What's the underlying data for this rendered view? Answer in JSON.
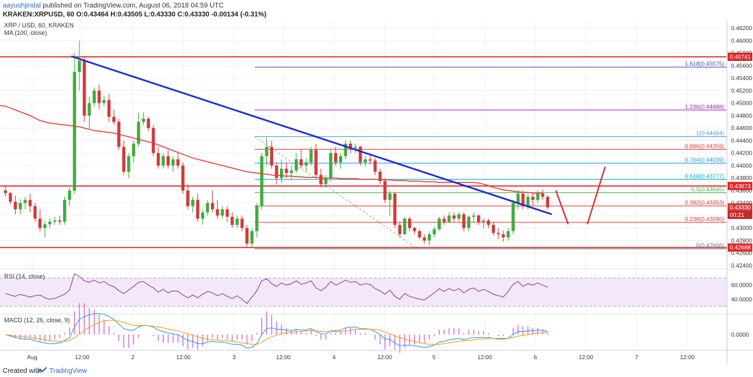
{
  "header": {
    "author": "aayushjindal",
    "published_text": "published on TradingView.com, August 06, 2018 04:59 UTC",
    "ohlc_line": "KRAKEN:XRPUSD, 60  O:0.43464  H:0.43505  L:0.43330  C:0.43330  -0.00134 (-0.31%)"
  },
  "legend": {
    "symbol": "XRP / USD, 60, KRAKEN",
    "ma": "MA (100, close)",
    "rsi": "RSI (14, close)",
    "macd": "MACD (12, 26, close, 9)"
  },
  "footer": {
    "created_with": "Created with",
    "brand": "TradingView"
  },
  "colors": {
    "up": "#3cae3c",
    "down": "#d23a3a",
    "ma": "#e53935",
    "trendline": "#1f2ccf",
    "level": "#e0262a",
    "rsi": "#8a3aa0",
    "macd": "#2196f3",
    "signal": "#ff9800",
    "hist_pos": "#d35bcf",
    "hist_neg": "#d35bcf"
  },
  "chart_data": {
    "type": "candlestick",
    "symbol": "XRP / USD",
    "timeframe": "60",
    "exchange": "KRAKEN",
    "price_axis": {
      "range": [
        0.424,
        0.463
      ],
      "ticks": [
        "0.46200",
        "0.46000",
        "0.45800",
        "0.45600",
        "0.45400",
        "0.45200",
        "0.45000",
        "0.44800",
        "0.44600",
        "0.44400",
        "0.44200",
        "0.44000",
        "0.43800",
        "0.43600",
        "0.43400",
        "0.43200",
        "0.43000",
        "0.42800",
        "0.42600",
        "0.42400"
      ]
    },
    "time_axis": {
      "labels": [
        "Aug",
        "12:00",
        "2",
        "12:00",
        "3",
        "12:00",
        "4",
        "12:00",
        "5",
        "12:00",
        "6",
        "12:00",
        "7",
        "12:00"
      ]
    },
    "price_labels": [
      {
        "value": "0.45741",
        "kind": "level"
      },
      {
        "value": "0.43673",
        "kind": "level"
      },
      {
        "value": "0.43330",
        "kind": "last"
      },
      {
        "value": "00:21",
        "kind": "countdown"
      },
      {
        "value": "0.42688",
        "kind": "level"
      }
    ],
    "fib_levels": [
      {
        "label": "1.618(0.45575)",
        "value": 0.45575,
        "color": "#3f51b5"
      },
      {
        "label": "1.236(0.44888)",
        "value": 0.44888,
        "color": "#9c27b0"
      },
      {
        "label": "1(0.44464)",
        "value": 0.44464,
        "color": "#4aa3d8"
      },
      {
        "label": "0.886(0.44259)",
        "value": 0.44259,
        "color": "#e53935"
      },
      {
        "label": "0.764(0.44039)",
        "value": 0.44039,
        "color": "#2196f3"
      },
      {
        "label": "0.618(0.43777)",
        "value": 0.43777,
        "color": "#00acc1"
      },
      {
        "label": "0.5(0.43565)",
        "value": 0.43565,
        "color": "#4caf50"
      },
      {
        "label": "0.382(0.43353)",
        "value": 0.43353,
        "color": "#e53935"
      },
      {
        "label": "0.236(0.43090)",
        "value": 0.4309,
        "color": "#e53935"
      },
      {
        "label": "0(0.42666)",
        "value": 0.42666,
        "color": "#607d8b"
      }
    ],
    "horizontal_levels": [
      0.45741,
      0.43673,
      0.42688
    ],
    "candles": [
      [
        0.436,
        0.4367,
        0.435,
        0.4356
      ],
      [
        0.4356,
        0.4358,
        0.4338,
        0.4342
      ],
      [
        0.4342,
        0.4352,
        0.4322,
        0.433
      ],
      [
        0.433,
        0.4346,
        0.4322,
        0.434
      ],
      [
        0.434,
        0.435,
        0.433,
        0.4345
      ],
      [
        0.4345,
        0.4355,
        0.4325,
        0.4335
      ],
      [
        0.4335,
        0.434,
        0.431,
        0.4315
      ],
      [
        0.4315,
        0.433,
        0.4295,
        0.43
      ],
      [
        0.43,
        0.4312,
        0.4285,
        0.4306
      ],
      [
        0.4306,
        0.4315,
        0.43,
        0.431
      ],
      [
        0.431,
        0.4318,
        0.4305,
        0.4312
      ],
      [
        0.4312,
        0.432,
        0.4305,
        0.431
      ],
      [
        0.431,
        0.435,
        0.4305,
        0.4345
      ],
      [
        0.4345,
        0.4365,
        0.4335,
        0.436
      ],
      [
        0.436,
        0.458,
        0.4355,
        0.455
      ],
      [
        0.455,
        0.46,
        0.452,
        0.4568
      ],
      [
        0.4568,
        0.4575,
        0.447,
        0.448
      ],
      [
        0.448,
        0.451,
        0.446,
        0.45
      ],
      [
        0.45,
        0.4525,
        0.4495,
        0.452
      ],
      [
        0.452,
        0.453,
        0.449,
        0.45
      ],
      [
        0.45,
        0.4512,
        0.4495,
        0.4505
      ],
      [
        0.4505,
        0.4515,
        0.447,
        0.4478
      ],
      [
        0.4478,
        0.449,
        0.4465,
        0.447
      ],
      [
        0.447,
        0.4475,
        0.4425,
        0.443
      ],
      [
        0.443,
        0.444,
        0.4385,
        0.439
      ],
      [
        0.439,
        0.442,
        0.438,
        0.4415
      ],
      [
        0.4415,
        0.444,
        0.4405,
        0.4435
      ],
      [
        0.4435,
        0.4485,
        0.443,
        0.447
      ],
      [
        0.447,
        0.4485,
        0.4465,
        0.4475
      ],
      [
        0.4475,
        0.4478,
        0.4455,
        0.446
      ],
      [
        0.446,
        0.4465,
        0.4415,
        0.442
      ],
      [
        0.442,
        0.443,
        0.4395,
        0.44
      ],
      [
        0.44,
        0.442,
        0.4395,
        0.4415
      ],
      [
        0.4415,
        0.4425,
        0.4395,
        0.44
      ],
      [
        0.44,
        0.4415,
        0.439,
        0.441
      ],
      [
        0.441,
        0.442,
        0.4395,
        0.44
      ],
      [
        0.44,
        0.4405,
        0.4355,
        0.436
      ],
      [
        0.436,
        0.437,
        0.433,
        0.4335
      ],
      [
        0.4335,
        0.435,
        0.4325,
        0.4345
      ],
      [
        0.4345,
        0.4355,
        0.431,
        0.4315
      ],
      [
        0.4315,
        0.433,
        0.4305,
        0.4325
      ],
      [
        0.4325,
        0.4345,
        0.432,
        0.434
      ],
      [
        0.434,
        0.436,
        0.4325,
        0.433
      ],
      [
        0.433,
        0.4345,
        0.4315,
        0.432
      ],
      [
        0.432,
        0.4335,
        0.4315,
        0.433
      ],
      [
        0.433,
        0.4335,
        0.431,
        0.4318
      ],
      [
        0.4318,
        0.4325,
        0.43,
        0.4305
      ],
      [
        0.4305,
        0.432,
        0.43,
        0.4315
      ],
      [
        0.4315,
        0.432,
        0.4295,
        0.43
      ],
      [
        0.43,
        0.4305,
        0.427,
        0.4275
      ],
      [
        0.4275,
        0.43,
        0.427,
        0.4295
      ],
      [
        0.4295,
        0.434,
        0.4285,
        0.4335
      ],
      [
        0.4335,
        0.442,
        0.433,
        0.4415
      ],
      [
        0.4415,
        0.4445,
        0.44,
        0.443
      ],
      [
        0.443,
        0.444,
        0.4395,
        0.44
      ],
      [
        0.44,
        0.4405,
        0.437,
        0.438
      ],
      [
        0.438,
        0.441,
        0.4372,
        0.4395
      ],
      [
        0.4395,
        0.4405,
        0.438,
        0.4388
      ],
      [
        0.4388,
        0.44,
        0.4378,
        0.4392
      ],
      [
        0.4392,
        0.442,
        0.4388,
        0.441
      ],
      [
        0.441,
        0.4425,
        0.4395,
        0.44
      ],
      [
        0.44,
        0.4412,
        0.439,
        0.4405
      ],
      [
        0.4405,
        0.443,
        0.44,
        0.4425
      ],
      [
        0.4425,
        0.4435,
        0.438,
        0.4385
      ],
      [
        0.4385,
        0.4395,
        0.4365,
        0.437
      ],
      [
        0.437,
        0.4385,
        0.4365,
        0.438
      ],
      [
        0.438,
        0.4425,
        0.4375,
        0.442
      ],
      [
        0.442,
        0.443,
        0.44,
        0.4405
      ],
      [
        0.4405,
        0.442,
        0.4395,
        0.4415
      ],
      [
        0.4415,
        0.444,
        0.441,
        0.4435
      ],
      [
        0.4435,
        0.444,
        0.442,
        0.4428
      ],
      [
        0.4428,
        0.4435,
        0.442,
        0.443
      ],
      [
        0.443,
        0.4432,
        0.44,
        0.4405
      ],
      [
        0.4405,
        0.4415,
        0.4398,
        0.441
      ],
      [
        0.441,
        0.4418,
        0.4402,
        0.4408
      ],
      [
        0.4408,
        0.4412,
        0.4385,
        0.439
      ],
      [
        0.439,
        0.4395,
        0.437,
        0.4375
      ],
      [
        0.4375,
        0.438,
        0.434,
        0.4345
      ],
      [
        0.4345,
        0.436,
        0.432,
        0.4355
      ],
      [
        0.4355,
        0.4358,
        0.43,
        0.4305
      ],
      [
        0.4305,
        0.431,
        0.4285,
        0.429
      ],
      [
        0.429,
        0.4318,
        0.4288,
        0.4315
      ],
      [
        0.4315,
        0.4318,
        0.4295,
        0.43
      ],
      [
        0.43,
        0.4302,
        0.429,
        0.4295
      ],
      [
        0.4295,
        0.4298,
        0.4282,
        0.4285
      ],
      [
        0.4285,
        0.429,
        0.4275,
        0.428
      ],
      [
        0.428,
        0.4295,
        0.4272,
        0.429
      ],
      [
        0.429,
        0.4302,
        0.4285,
        0.4298
      ],
      [
        0.4298,
        0.4318,
        0.4295,
        0.4315
      ],
      [
        0.4315,
        0.432,
        0.4305,
        0.431
      ],
      [
        0.431,
        0.4325,
        0.4308,
        0.432
      ],
      [
        0.432,
        0.4325,
        0.431,
        0.4315
      ],
      [
        0.4315,
        0.4325,
        0.431,
        0.4322
      ],
      [
        0.4322,
        0.4325,
        0.4295,
        0.43
      ],
      [
        0.43,
        0.432,
        0.4295,
        0.4318
      ],
      [
        0.4318,
        0.4325,
        0.431,
        0.432
      ],
      [
        0.432,
        0.4322,
        0.4305,
        0.431
      ],
      [
        0.431,
        0.4315,
        0.43,
        0.4312
      ],
      [
        0.4312,
        0.4315,
        0.43,
        0.4305
      ],
      [
        0.4305,
        0.431,
        0.4288,
        0.4292
      ],
      [
        0.4292,
        0.43,
        0.4282,
        0.429
      ],
      [
        0.429,
        0.4296,
        0.4278,
        0.4285
      ],
      [
        0.4285,
        0.43,
        0.428,
        0.4295
      ],
      [
        0.4295,
        0.4345,
        0.429,
        0.434
      ],
      [
        0.434,
        0.436,
        0.433,
        0.4355
      ],
      [
        0.4355,
        0.436,
        0.433,
        0.4335
      ],
      [
        0.4335,
        0.4355,
        0.433,
        0.435
      ],
      [
        0.435,
        0.4355,
        0.4335,
        0.4345
      ],
      [
        0.4345,
        0.436,
        0.434,
        0.4355
      ],
      [
        0.4355,
        0.4362,
        0.4345,
        0.435
      ],
      [
        0.435,
        0.4352,
        0.433,
        0.4333
      ]
    ],
    "ma100": [
      0.4495,
      0.4492,
      0.4489,
      0.4486,
      0.4483,
      0.448,
      0.4476,
      0.4472,
      0.447,
      0.4468,
      0.4467,
      0.4466,
      0.4465,
      0.4464,
      0.4463,
      0.4462,
      0.446,
      0.4458,
      0.4456,
      0.4455,
      0.4454,
      0.4453,
      0.4452,
      0.445,
      0.4448,
      0.4446,
      0.4444,
      0.4442,
      0.444,
      0.4438,
      0.4436,
      0.4433,
      0.443,
      0.4427,
      0.4424,
      0.4421,
      0.4418,
      0.4415,
      0.4412,
      0.441,
      0.4408,
      0.4406,
      0.4404,
      0.4402,
      0.44,
      0.4398,
      0.4396,
      0.4394,
      0.4392,
      0.439,
      0.4389,
      0.4388,
      0.4387,
      0.4386,
      0.4385,
      0.4384,
      0.4384,
      0.4383,
      0.4383,
      0.4382,
      0.4382,
      0.4381,
      0.4381,
      0.4381,
      0.438,
      0.438,
      0.438,
      0.438,
      0.4379,
      0.4379,
      0.4379,
      0.4379,
      0.4378,
      0.4378,
      0.4378,
      0.4378,
      0.4377,
      0.4377,
      0.4377,
      0.4376,
      0.4376,
      0.4376,
      0.4375,
      0.4375,
      0.4375,
      0.4374,
      0.4374,
      0.4374,
      0.4373,
      0.4373,
      0.4373,
      0.4373,
      0.4373,
      0.4373,
      0.4373,
      0.4373,
      0.4372,
      0.437,
      0.4368,
      0.4365,
      0.4363,
      0.4361,
      0.436,
      0.4359,
      0.4358,
      0.4357,
      0.4357,
      0.4356,
      0.4356,
      0.4356
    ],
    "trendline": {
      "from": [
        0.4575
      ],
      "to": [
        0.4322
      ]
    },
    "rsi": {
      "range": [
        20,
        80
      ],
      "ticks": [
        "60.0000",
        "40.0000"
      ],
      "band": [
        70,
        30
      ],
      "values": [
        48,
        46,
        44,
        47,
        45,
        43,
        45,
        46,
        42,
        40,
        41,
        44,
        47,
        53,
        76,
        72,
        66,
        64,
        67,
        63,
        65,
        60,
        58,
        52,
        48,
        53,
        58,
        64,
        65,
        60,
        56,
        50,
        54,
        49,
        52,
        51,
        46,
        42,
        46,
        42,
        47,
        51,
        49,
        45,
        48,
        44,
        41,
        45,
        40,
        34,
        43,
        52,
        66,
        69,
        62,
        58,
        63,
        60,
        62,
        66,
        61,
        63,
        66,
        56,
        52,
        57,
        65,
        60,
        63,
        67,
        64,
        65,
        60,
        62,
        61,
        55,
        52,
        47,
        53,
        44,
        40,
        48,
        44,
        42,
        40,
        39,
        44,
        49,
        55,
        51,
        55,
        52,
        55,
        49,
        54,
        56,
        51,
        54,
        51,
        47,
        45,
        43,
        51,
        61,
        65,
        58,
        62,
        60,
        63,
        60,
        57
      ],
      "min_label": "",
      "color_name": "rsi"
    },
    "macd": {
      "ticks": [
        "0.0000"
      ],
      "macd": [
        0.0,
        -0.0002,
        -0.0004,
        -0.0005,
        -0.0006,
        -0.0006,
        -0.0008,
        -0.001,
        -0.0011,
        -0.0012,
        -0.0012,
        -0.0011,
        -0.0008,
        -0.0004,
        0.001,
        0.002,
        0.0024,
        0.0026,
        0.0028,
        0.0028,
        0.0027,
        0.0024,
        0.002,
        0.0014,
        0.0008,
        0.0006,
        0.0006,
        0.001,
        0.0012,
        0.0012,
        0.001,
        0.0006,
        0.0004,
        0.0002,
        0.0001,
        0.0,
        -0.0004,
        -0.0008,
        -0.0009,
        -0.0012,
        -0.0012,
        -0.001,
        -0.0009,
        -0.001,
        -0.001,
        -0.0011,
        -0.0013,
        -0.0013,
        -0.0014,
        -0.0018,
        -0.0017,
        -0.0012,
        0.0,
        0.0008,
        0.0009,
        0.0007,
        0.0007,
        0.0006,
        0.0005,
        0.0007,
        0.0006,
        0.0006,
        0.0008,
        0.0004,
        0.0001,
        0.0001,
        0.0005,
        0.0005,
        0.0006,
        0.0009,
        0.001,
        0.001,
        0.0008,
        0.0008,
        0.0007,
        0.0004,
        0.0,
        -0.0006,
        -0.0006,
        -0.0011,
        -0.0015,
        -0.0014,
        -0.0014,
        -0.0015,
        -0.0016,
        -0.0017,
        -0.0016,
        -0.0014,
        -0.001,
        -0.0009,
        -0.0007,
        -0.0006,
        -0.0005,
        -0.0007,
        -0.0005,
        -0.0004,
        -0.0004,
        -0.0004,
        -0.0004,
        -0.0005,
        -0.0006,
        -0.0006,
        -0.0005,
        0.0,
        0.0004,
        0.0004,
        0.0005,
        0.0005,
        0.0006,
        0.0006,
        0.0004
      ],
      "signal": [
        0.0,
        -0.0001,
        -0.0002,
        -0.0002,
        -0.0003,
        -0.0004,
        -0.0005,
        -0.0006,
        -0.0007,
        -0.0008,
        -0.0009,
        -0.0009,
        -0.0009,
        -0.0008,
        -0.0004,
        0.0001,
        0.0005,
        0.001,
        0.0013,
        0.0016,
        0.0018,
        0.0019,
        0.0019,
        0.0018,
        0.0016,
        0.0014,
        0.0012,
        0.0012,
        0.0012,
        0.0012,
        0.0011,
        0.001,
        0.0009,
        0.0007,
        0.0006,
        0.0005,
        0.0003,
        0.0001,
        -0.0001,
        -0.0003,
        -0.0005,
        -0.0006,
        -0.0007,
        -0.0007,
        -0.0008,
        -0.0008,
        -0.0009,
        -0.001,
        -0.0011,
        -0.0012,
        -0.0013,
        -0.0013,
        -0.001,
        -0.0006,
        -0.0003,
        -0.0001,
        0.0001,
        0.0002,
        0.0003,
        0.0004,
        0.0004,
        0.0005,
        0.0005,
        0.0005,
        0.0004,
        0.0004,
        0.0004,
        0.0004,
        0.0004,
        0.0005,
        0.0006,
        0.0007,
        0.0007,
        0.0007,
        0.0007,
        0.0007,
        0.0006,
        0.0003,
        0.0001,
        -0.0002,
        -0.0004,
        -0.0006,
        -0.0008,
        -0.0009,
        -0.0011,
        -0.0012,
        -0.0013,
        -0.0013,
        -0.0013,
        -0.0012,
        -0.0011,
        -0.001,
        -0.0009,
        -0.0008,
        -0.0008,
        -0.0007,
        -0.0006,
        -0.0006,
        -0.0005,
        -0.0005,
        -0.0005,
        -0.0005,
        -0.0005,
        -0.0004,
        -0.0002,
        -0.0001,
        0.0,
        0.0001,
        0.0002,
        0.0003,
        0.0003
      ]
    }
  }
}
